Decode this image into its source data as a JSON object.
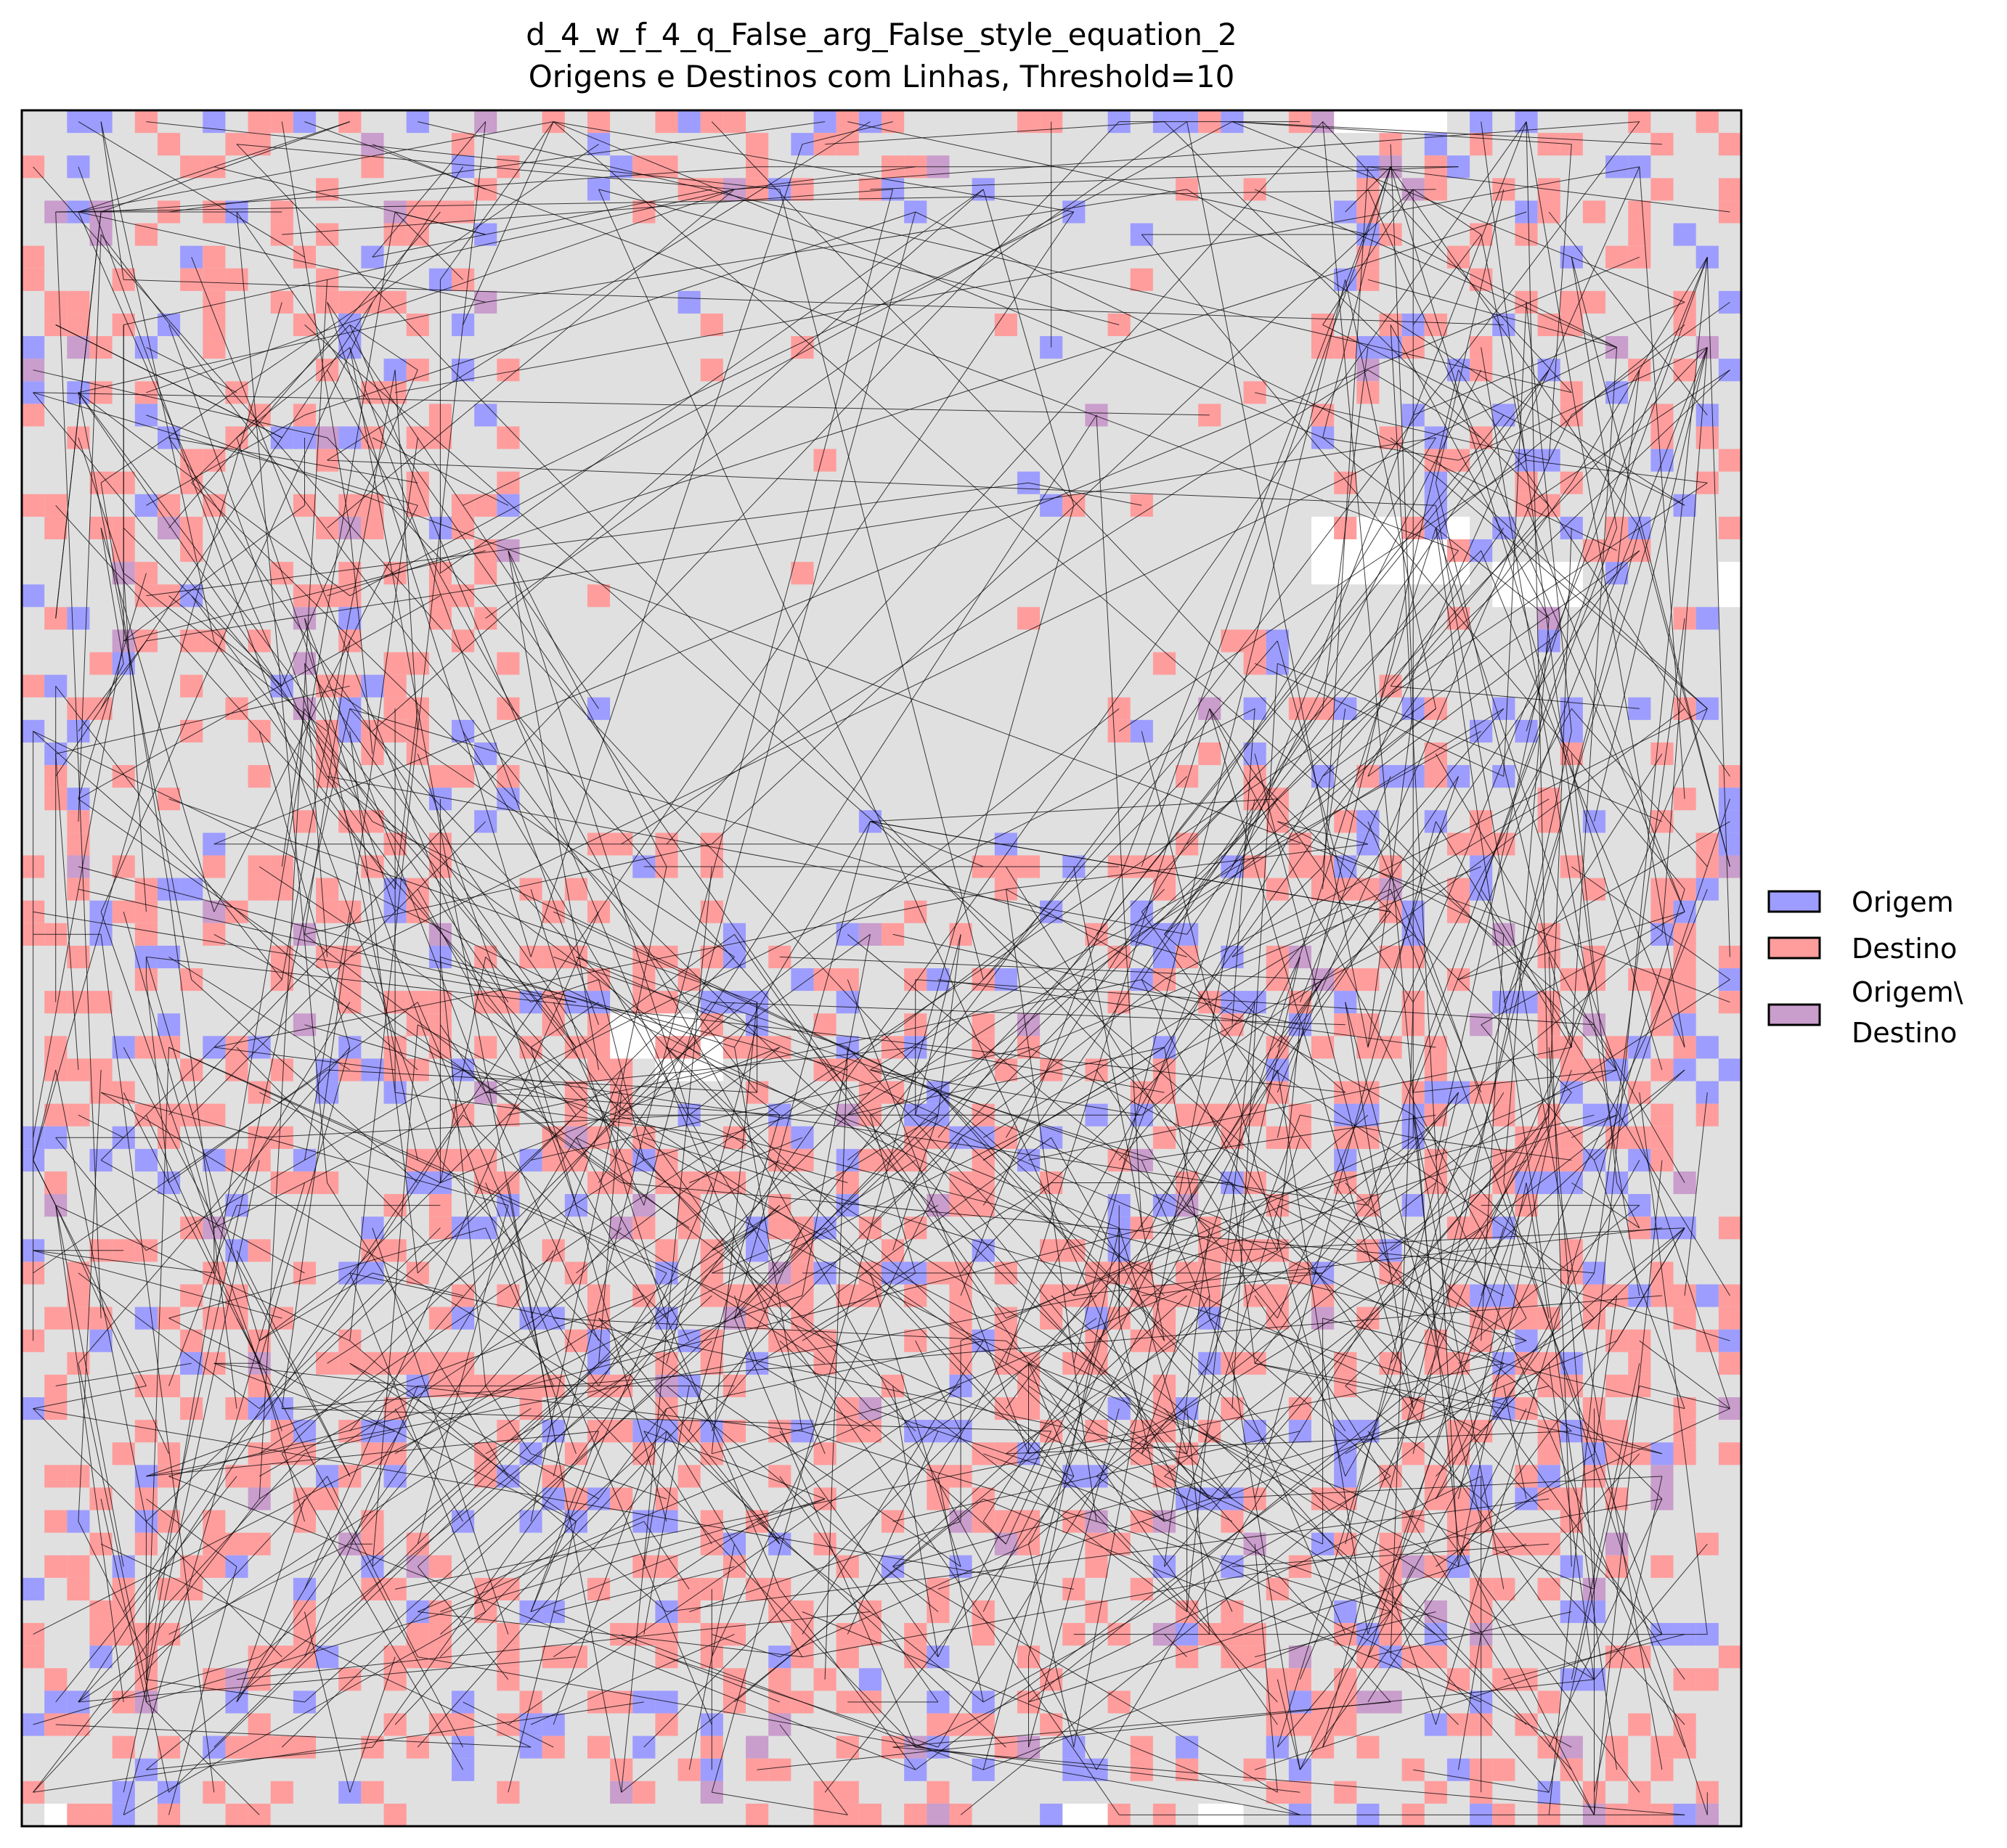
{
  "chart_data": {
    "type": "heatmap",
    "title_lines": [
      "d_4_w_f_4_q_False_arg_False_style_equation_2",
      "Origens e Destinos com Linhas, Threshold=10"
    ],
    "grid": false,
    "axes_ticks": false,
    "legend_placement": "center-right",
    "legend": [
      {
        "label": "Origem",
        "color": "#9d9dff"
      },
      {
        "label": "Destino",
        "color": "#ff9d9d"
      },
      {
        "label": "Origem\\",
        "label2": "Destino",
        "color": "#c99dcc"
      }
    ],
    "colors": {
      "background": "#e0e0e0",
      "empty": "#ffffff",
      "origin": "#9d9dff",
      "destination": "#ff9d9d",
      "both": "#c99dcc",
      "line": "#000000"
    },
    "grid_size": 76
  }
}
